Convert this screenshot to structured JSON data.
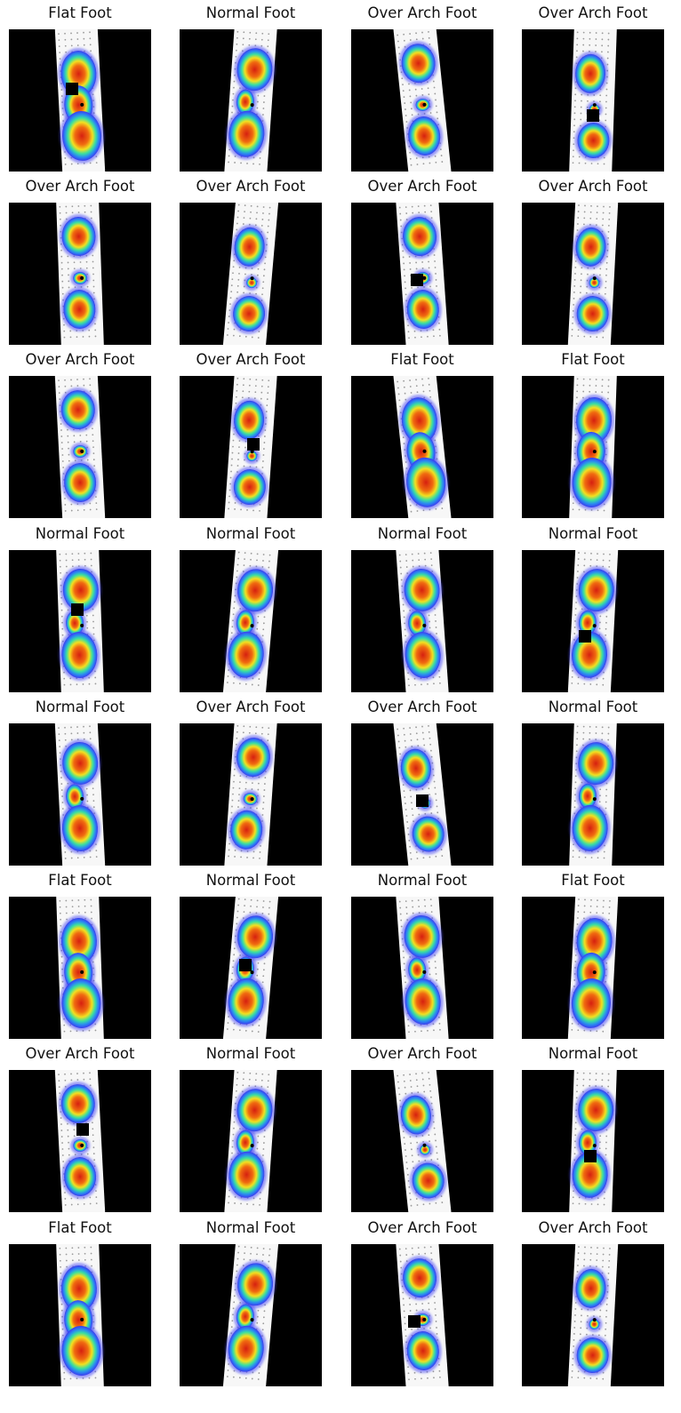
{
  "figure": {
    "rows": 8,
    "cols": 4,
    "panels": [
      {
        "title": "Flat Foot",
        "variant": 0
      },
      {
        "title": "Normal Foot",
        "variant": 1
      },
      {
        "title": "Over Arch Foot",
        "variant": 2
      },
      {
        "title": "Over Arch Foot",
        "variant": 3
      },
      {
        "title": "Over Arch Foot",
        "variant": 2
      },
      {
        "title": "Over Arch Foot",
        "variant": 3
      },
      {
        "title": "Over Arch Foot",
        "variant": 2
      },
      {
        "title": "Over Arch Foot",
        "variant": 3
      },
      {
        "title": "Over Arch Foot",
        "variant": 2
      },
      {
        "title": "Over Arch Foot",
        "variant": 3
      },
      {
        "title": "Flat Foot",
        "variant": 0
      },
      {
        "title": "Flat Foot",
        "variant": 0
      },
      {
        "title": "Normal Foot",
        "variant": 1
      },
      {
        "title": "Normal Foot",
        "variant": 1
      },
      {
        "title": "Normal Foot",
        "variant": 1
      },
      {
        "title": "Normal Foot",
        "variant": 1
      },
      {
        "title": "Normal Foot",
        "variant": 1
      },
      {
        "title": "Over Arch Foot",
        "variant": 2
      },
      {
        "title": "Over Arch Foot",
        "variant": 3
      },
      {
        "title": "Normal Foot",
        "variant": 1
      },
      {
        "title": "Flat Foot",
        "variant": 0
      },
      {
        "title": "Normal Foot",
        "variant": 1
      },
      {
        "title": "Normal Foot",
        "variant": 1
      },
      {
        "title": "Flat Foot",
        "variant": 0
      },
      {
        "title": "Over Arch Foot",
        "variant": 2
      },
      {
        "title": "Normal Foot",
        "variant": 1
      },
      {
        "title": "Over Arch Foot",
        "variant": 3
      },
      {
        "title": "Normal Foot",
        "variant": 1
      },
      {
        "title": "Flat Foot",
        "variant": 0
      },
      {
        "title": "Normal Foot",
        "variant": 1
      },
      {
        "title": "Over Arch Foot",
        "variant": 2
      },
      {
        "title": "Over Arch Foot",
        "variant": 3
      }
    ]
  }
}
